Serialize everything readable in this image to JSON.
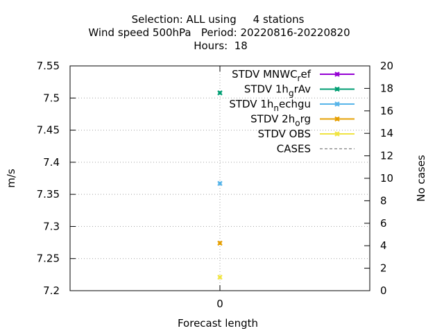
{
  "chart_data": {
    "type": "scatter",
    "title_lines": [
      "Selection: ALL using     4 stations",
      "Wind speed 500hPa   Period: 20220816-20220820",
      "Hours:  18"
    ],
    "xlabel": "Forecast length",
    "ylabel": "m/s",
    "y2label": "No cases",
    "x_ticks": [
      "0"
    ],
    "y_ticks": [
      "7.2",
      "7.25",
      "7.3",
      "7.35",
      "7.4",
      "7.45",
      "7.5",
      "7.55"
    ],
    "y2_ticks": [
      "0",
      "2",
      "4",
      "6",
      "8",
      "10",
      "12",
      "14",
      "16",
      "18",
      "20"
    ],
    "ylim": [
      7.2,
      7.55
    ],
    "y2lim": [
      0,
      20
    ],
    "grid": true,
    "legend_position": "top-right",
    "x": [
      0
    ],
    "series": [
      {
        "label": "STDV MNWC",
        "sub": "r",
        "rest": "ef",
        "color": "#9400d3",
        "values": [
          null
        ]
      },
      {
        "label": "STDV 1h",
        "sub": "g",
        "rest": "rAv",
        "color": "#009e73",
        "values": [
          7.508
        ]
      },
      {
        "label": "STDV 1h",
        "sub": "n",
        "rest": "echgu",
        "color": "#56b4e9",
        "values": [
          7.367
        ]
      },
      {
        "label": "STDV 2h",
        "sub": "o",
        "rest": "rg",
        "color": "#e69f00",
        "values": [
          7.274
        ]
      },
      {
        "label": "STDV OBS",
        "sub": "",
        "rest": "",
        "color": "#f0e442",
        "values": [
          7.221
        ]
      },
      {
        "label": "CASES",
        "sub": "",
        "rest": "",
        "color": "#808080",
        "dashed": true,
        "values": [
          null
        ]
      }
    ]
  }
}
